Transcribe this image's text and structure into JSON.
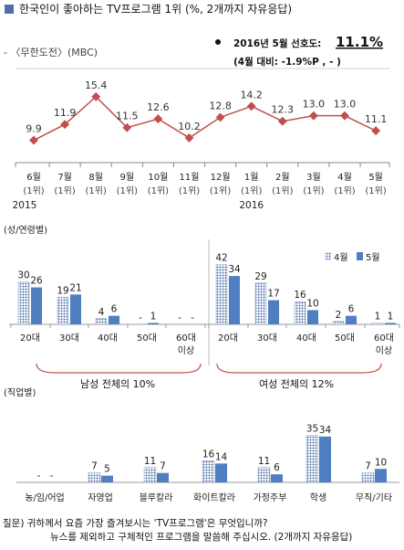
{
  "header": {
    "title": "한국인이 좋아하는 TV프로그램 1위 (%, 2개까지 자유응답)",
    "program_label": "- 〈무한도전〉(MBC)",
    "preference_text": "2016년 5월 선호도:",
    "preference_value": "11.1%",
    "change_text": "(4월 대비: -1.9%P , - )"
  },
  "colors": {
    "line": "#c0504d",
    "bar_april_pattern": "#4f6fa8",
    "bar_may": "#4f7ec1",
    "bracket": "#c0504d"
  },
  "legend": {
    "april": "4월",
    "may": "5월"
  },
  "sections": {
    "gender_age": "(성/연령별)",
    "occupation": "(직업별)"
  },
  "group_labels": {
    "male": "남성 전체의 10%",
    "female": "여성 전체의 12%"
  },
  "chart_data": [
    {
      "type": "line",
      "categories": [
        [
          "6월",
          "(1위)",
          "2015"
        ],
        [
          "7월",
          "(1위)",
          ""
        ],
        [
          "8월",
          "(1위)",
          ""
        ],
        [
          "9월",
          "(1위)",
          ""
        ],
        [
          "10월",
          "(1위)",
          ""
        ],
        [
          "11월",
          "(1위)",
          ""
        ],
        [
          "12월",
          "(1위)",
          ""
        ],
        [
          "1월",
          "(1위)",
          "2016"
        ],
        [
          "2월",
          "(1위)",
          ""
        ],
        [
          "3월",
          "(1위)",
          ""
        ],
        [
          "4월",
          "(1위)",
          ""
        ],
        [
          "5월",
          "(1위)",
          ""
        ]
      ],
      "values": [
        9.9,
        11.9,
        15.4,
        11.5,
        12.6,
        10.2,
        12.8,
        14.2,
        12.3,
        13.0,
        13.0,
        11.1
      ],
      "labels": [
        "9.9",
        "11.9",
        "15.4",
        "11.5",
        "12.6",
        "10.2",
        "12.8",
        "14.2",
        "12.3",
        "13.0",
        "13.0",
        "11.1"
      ],
      "ylim": [
        8,
        17
      ]
    },
    {
      "type": "bar",
      "name": "gender-age",
      "groups": [
        {
          "label": "남성",
          "categories": [
            [
              "20대"
            ],
            [
              "30대"
            ],
            [
              "40대"
            ],
            [
              "50대"
            ],
            [
              "60대",
              "이상"
            ]
          ]
        },
        {
          "label": "여성",
          "categories": [
            [
              "20대"
            ],
            [
              "30대"
            ],
            [
              "40대"
            ],
            [
              "50대"
            ],
            [
              "60대",
              "이상"
            ]
          ]
        }
      ],
      "series": [
        {
          "name": "4월",
          "values": [
            30,
            19,
            4,
            0,
            0,
            42,
            29,
            16,
            2,
            1
          ],
          "labels": [
            "30",
            "19",
            "4",
            "-",
            "-",
            "42",
            "29",
            "16",
            "2",
            "1"
          ]
        },
        {
          "name": "5월",
          "values": [
            26,
            21,
            6,
            1,
            0,
            34,
            17,
            10,
            6,
            1
          ],
          "labels": [
            "26",
            "21",
            "6",
            "1",
            "-",
            "34",
            "17",
            "10",
            "6",
            "1"
          ]
        }
      ],
      "ylim": [
        0,
        45
      ]
    },
    {
      "type": "bar",
      "name": "occupation",
      "categories": [
        "농/임/어업",
        "자영업",
        "블루칼라",
        "화이트칼라",
        "가정주부",
        "학생",
        "무직/기타"
      ],
      "series": [
        {
          "name": "4월",
          "values": [
            0,
            7,
            11,
            16,
            11,
            35,
            7
          ],
          "labels": [
            "-",
            "7",
            "11",
            "16",
            "11",
            "35",
            "7"
          ]
        },
        {
          "name": "5월",
          "values": [
            0,
            5,
            7,
            14,
            6,
            34,
            10
          ],
          "labels": [
            "-",
            "5",
            "7",
            "14",
            "6",
            "34",
            "10"
          ]
        }
      ],
      "ylim": [
        0,
        40
      ]
    }
  ],
  "footer": {
    "line1": "질문) 귀하께서 요즘 가장 즐겨보시는 'TV프로그램'은 무엇입니까?",
    "line2": "뉴스를 제외하고 구체적인 프로그램을 말씀해 주십시오. (2개까지 자유응답)"
  }
}
